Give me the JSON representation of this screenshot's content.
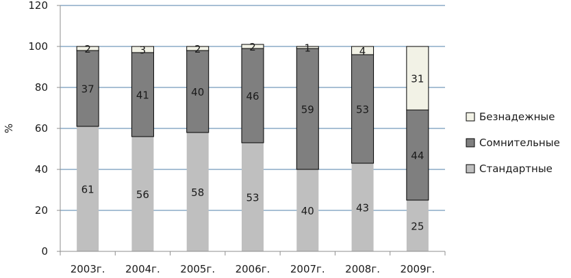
{
  "chart_data": {
    "type": "bar",
    "stacked": true,
    "categories": [
      "2003г.",
      "2004г.",
      "2005г.",
      "2006г.",
      "2007г.",
      "2008г.",
      "2009г."
    ],
    "series": [
      {
        "name": "Стандартные",
        "color": "#bfbfbf",
        "values": [
          61,
          56,
          58,
          53,
          40,
          43,
          25
        ]
      },
      {
        "name": "Сомнительные",
        "color": "#7f7f7f",
        "values": [
          37,
          41,
          40,
          46,
          59,
          53,
          44
        ]
      },
      {
        "name": "Безнадежные",
        "color": "#f2f2e6",
        "values": [
          2,
          3,
          2,
          2,
          1,
          4,
          31
        ]
      }
    ],
    "title": "",
    "xlabel": "",
    "ylabel": "%",
    "ylim": [
      0,
      120
    ],
    "yticks": [
      0,
      20,
      40,
      60,
      80,
      100,
      120
    ],
    "grid": true,
    "legend_position": "right",
    "legend_order": [
      "Безнадежные",
      "Сомнительные",
      "Стандартные"
    ]
  }
}
